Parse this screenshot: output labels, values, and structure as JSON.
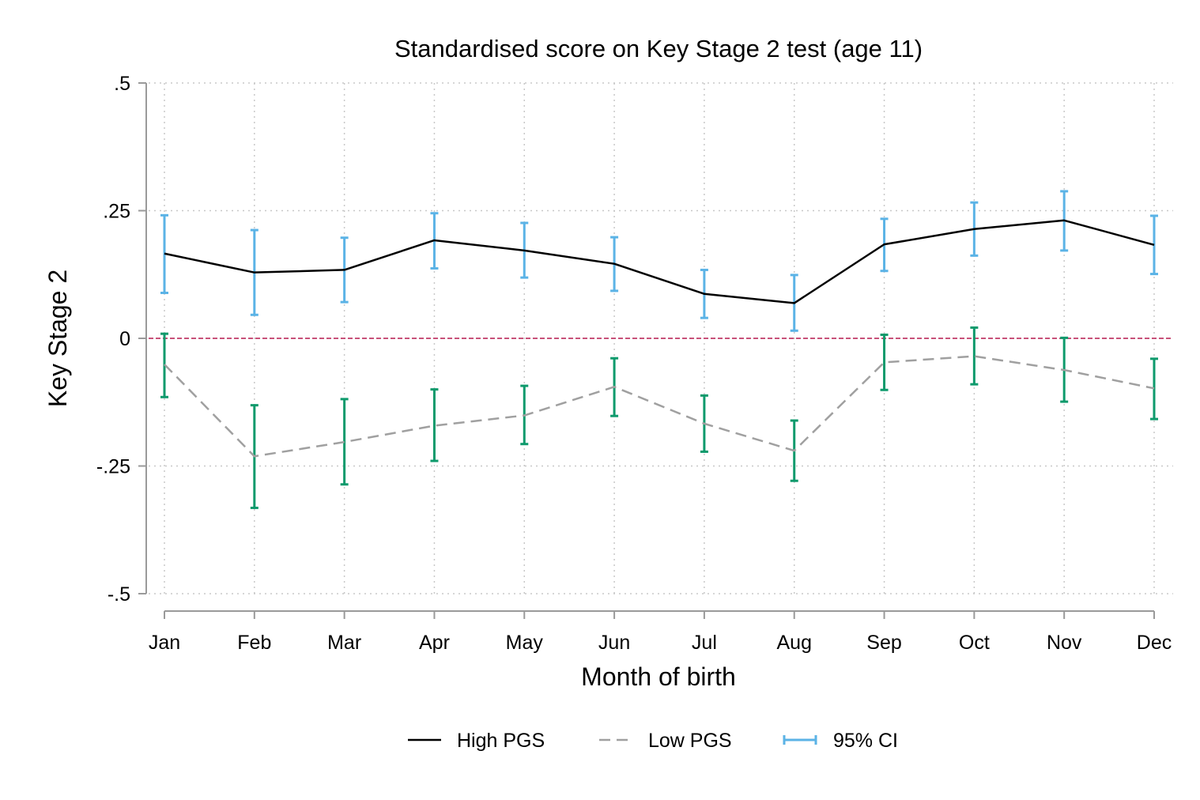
{
  "chart_data": {
    "type": "line",
    "title": "Standardised score on Key Stage 2 test (age 11)",
    "xlabel": "Month of birth",
    "ylabel": "Key Stage 2",
    "categories": [
      "Jan",
      "Feb",
      "Mar",
      "Apr",
      "May",
      "Jun",
      "Jul",
      "Aug",
      "Sep",
      "Oct",
      "Nov",
      "Dec"
    ],
    "ylim": [
      -0.5,
      0.5
    ],
    "yticks": [
      0.5,
      0.25,
      0,
      -0.25,
      -0.5
    ],
    "ytick_labels": [
      ".5",
      ".25",
      "0",
      "-.25",
      "-.5"
    ],
    "grid": true,
    "reference_line": 0,
    "series": [
      {
        "name": "High PGS",
        "style": "solid",
        "color": "#000000",
        "ci_color": "#5bb3e6",
        "values": [
          0.166,
          0.129,
          0.134,
          0.192,
          0.172,
          0.146,
          0.087,
          0.069,
          0.184,
          0.214,
          0.231,
          0.183
        ],
        "ci_low": [
          0.089,
          0.046,
          0.071,
          0.137,
          0.119,
          0.093,
          0.04,
          0.015,
          0.132,
          0.162,
          0.172,
          0.126
        ],
        "ci_high": [
          0.241,
          0.212,
          0.197,
          0.245,
          0.226,
          0.198,
          0.134,
          0.124,
          0.234,
          0.266,
          0.288,
          0.24
        ]
      },
      {
        "name": "Low PGS",
        "style": "dashed",
        "color": "#a0a0a0",
        "ci_color": "#0e9a6c",
        "values": [
          -0.051,
          -0.231,
          -0.203,
          -0.171,
          -0.151,
          -0.095,
          -0.167,
          -0.22,
          -0.047,
          -0.035,
          -0.062,
          -0.098
        ],
        "ci_low": [
          -0.115,
          -0.332,
          -0.286,
          -0.24,
          -0.207,
          -0.152,
          -0.222,
          -0.279,
          -0.101,
          -0.09,
          -0.124,
          -0.158
        ],
        "ci_high": [
          0.009,
          -0.131,
          -0.119,
          -0.1,
          -0.093,
          -0.039,
          -0.112,
          -0.161,
          0.007,
          0.021,
          0.001,
          -0.04
        ]
      }
    ],
    "legend": {
      "position": "bottom",
      "entries": [
        {
          "label": "High PGS",
          "style": "solid",
          "color": "#000000"
        },
        {
          "label": "Low PGS",
          "style": "dashed",
          "color": "#a0a0a0"
        },
        {
          "label": "95% CI",
          "style": "errorbar",
          "color": "#5bb3e6"
        }
      ]
    },
    "colors": {
      "axis": "#9a9a9a",
      "grid": "#c8c8c8",
      "reference": "#c8527a"
    }
  }
}
